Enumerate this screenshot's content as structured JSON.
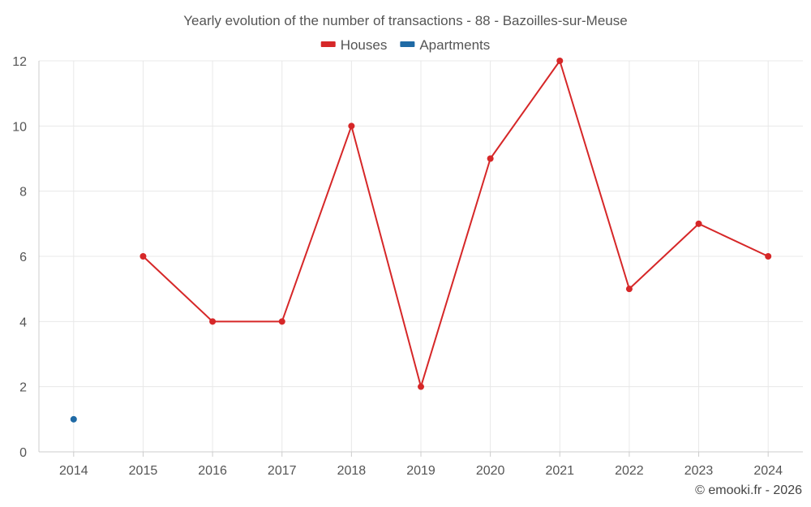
{
  "chart_data": {
    "type": "line",
    "title": "Yearly evolution of the number of transactions - 88 - Bazoilles-sur-Meuse",
    "categories": [
      "2014",
      "2015",
      "2016",
      "2017",
      "2018",
      "2019",
      "2020",
      "2021",
      "2022",
      "2023",
      "2024"
    ],
    "series": [
      {
        "name": "Houses",
        "color": "#d62728",
        "values": [
          null,
          6,
          4,
          4,
          10,
          2,
          9,
          12,
          5,
          7,
          6
        ]
      },
      {
        "name": "Apartments",
        "color": "#1f6aa5",
        "values": [
          1,
          null,
          null,
          null,
          null,
          null,
          null,
          null,
          null,
          null,
          null
        ]
      }
    ],
    "ylim": [
      0,
      12
    ],
    "yticks": [
      0,
      2,
      4,
      6,
      8,
      10,
      12
    ],
    "xlabel": "",
    "ylabel": "",
    "grid": true,
    "legend": "top-center"
  },
  "credit": "© emooki.fr - 2026"
}
